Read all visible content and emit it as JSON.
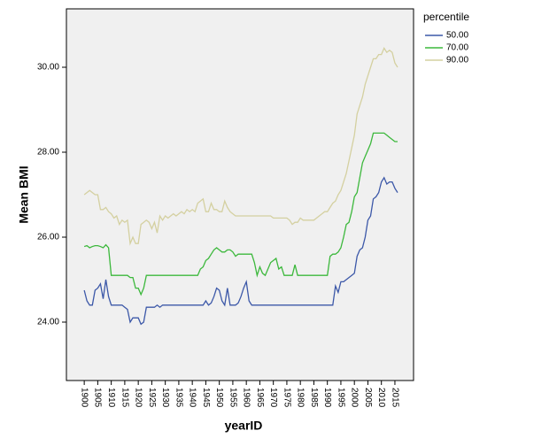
{
  "chart_data": {
    "type": "line",
    "x_label": "yearID",
    "y_label": "Mean BMI",
    "legend_title": "percentile",
    "legend_position": "right",
    "x": [
      1900,
      1901,
      1902,
      1903,
      1904,
      1905,
      1906,
      1907,
      1908,
      1909,
      1910,
      1911,
      1912,
      1913,
      1914,
      1915,
      1916,
      1917,
      1918,
      1919,
      1920,
      1921,
      1922,
      1923,
      1924,
      1925,
      1926,
      1927,
      1928,
      1929,
      1930,
      1931,
      1932,
      1933,
      1934,
      1935,
      1936,
      1937,
      1938,
      1939,
      1940,
      1941,
      1942,
      1943,
      1944,
      1945,
      1946,
      1947,
      1948,
      1949,
      1950,
      1951,
      1952,
      1953,
      1954,
      1955,
      1956,
      1957,
      1958,
      1959,
      1960,
      1961,
      1962,
      1963,
      1964,
      1965,
      1966,
      1967,
      1968,
      1969,
      1970,
      1971,
      1972,
      1973,
      1974,
      1975,
      1976,
      1977,
      1978,
      1979,
      1980,
      1981,
      1982,
      1983,
      1984,
      1985,
      1986,
      1987,
      1988,
      1989,
      1990,
      1991,
      1992,
      1993,
      1994,
      1995,
      1996,
      1997,
      1998,
      1999,
      2000,
      2001,
      2002,
      2003,
      2004,
      2005,
      2006,
      2007,
      2008,
      2009,
      2010,
      2011,
      2012,
      2013,
      2014,
      2015,
      2016
    ],
    "series": [
      {
        "name": "50.00",
        "color": "#3c58a8",
        "values": [
          24.75,
          24.5,
          24.4,
          24.4,
          24.75,
          24.8,
          24.9,
          24.55,
          25.0,
          24.6,
          24.4,
          24.4,
          24.4,
          24.4,
          24.4,
          24.35,
          24.3,
          24.0,
          24.1,
          24.1,
          24.1,
          23.95,
          24.0,
          24.35,
          24.35,
          24.35,
          24.35,
          24.4,
          24.35,
          24.4,
          24.4,
          24.4,
          24.4,
          24.4,
          24.4,
          24.4,
          24.4,
          24.4,
          24.4,
          24.4,
          24.4,
          24.4,
          24.4,
          24.4,
          24.4,
          24.5,
          24.4,
          24.45,
          24.6,
          24.8,
          24.75,
          24.5,
          24.4,
          24.8,
          24.4,
          24.4,
          24.4,
          24.45,
          24.6,
          24.8,
          24.95,
          24.5,
          24.4,
          24.4,
          24.4,
          24.4,
          24.4,
          24.4,
          24.4,
          24.4,
          24.4,
          24.4,
          24.4,
          24.4,
          24.4,
          24.4,
          24.4,
          24.4,
          24.4,
          24.4,
          24.4,
          24.4,
          24.4,
          24.4,
          24.4,
          24.4,
          24.4,
          24.4,
          24.4,
          24.4,
          24.4,
          24.4,
          24.4,
          24.85,
          24.7,
          24.95,
          24.95,
          25.0,
          25.05,
          25.1,
          25.15,
          25.55,
          25.7,
          25.75,
          26.0,
          26.4,
          26.5,
          26.9,
          26.95,
          27.05,
          27.3,
          27.4,
          27.25,
          27.3,
          27.3,
          27.15,
          27.05
        ]
      },
      {
        "name": "70.00",
        "color": "#3cb83c",
        "values": [
          25.78,
          25.8,
          25.75,
          25.78,
          25.8,
          25.8,
          25.78,
          25.75,
          25.82,
          25.75,
          25.1,
          25.1,
          25.1,
          25.1,
          25.1,
          25.1,
          25.1,
          25.05,
          25.05,
          24.8,
          24.8,
          24.65,
          24.8,
          25.1,
          25.1,
          25.1,
          25.1,
          25.1,
          25.1,
          25.1,
          25.1,
          25.1,
          25.1,
          25.1,
          25.1,
          25.1,
          25.1,
          25.1,
          25.1,
          25.1,
          25.1,
          25.1,
          25.1,
          25.25,
          25.3,
          25.45,
          25.5,
          25.6,
          25.7,
          25.75,
          25.7,
          25.65,
          25.65,
          25.7,
          25.7,
          25.65,
          25.55,
          25.6,
          25.6,
          25.6,
          25.6,
          25.6,
          25.6,
          25.4,
          25.1,
          25.3,
          25.15,
          25.1,
          25.25,
          25.4,
          25.45,
          25.5,
          25.25,
          25.3,
          25.1,
          25.1,
          25.1,
          25.1,
          25.35,
          25.1,
          25.1,
          25.1,
          25.1,
          25.1,
          25.1,
          25.1,
          25.1,
          25.1,
          25.1,
          25.1,
          25.1,
          25.55,
          25.6,
          25.6,
          25.65,
          25.75,
          26.0,
          26.3,
          26.35,
          26.6,
          26.95,
          27.05,
          27.4,
          27.75,
          27.9,
          28.05,
          28.2,
          28.45,
          28.45,
          28.45,
          28.45,
          28.45,
          28.4,
          28.35,
          28.3,
          28.25,
          28.25
        ]
      },
      {
        "name": "90.00",
        "color": "#d4d0a0",
        "values": [
          27.0,
          27.05,
          27.1,
          27.05,
          27.0,
          27.0,
          26.65,
          26.65,
          26.7,
          26.6,
          26.55,
          26.45,
          26.5,
          26.3,
          26.4,
          26.35,
          26.4,
          25.85,
          26.0,
          25.85,
          25.85,
          26.3,
          26.35,
          26.4,
          26.35,
          26.2,
          26.35,
          26.1,
          26.5,
          26.4,
          26.5,
          26.45,
          26.5,
          26.55,
          26.5,
          26.55,
          26.6,
          26.55,
          26.65,
          26.6,
          26.65,
          26.6,
          26.8,
          26.85,
          26.9,
          26.6,
          26.6,
          26.8,
          26.65,
          26.65,
          26.6,
          26.6,
          26.85,
          26.7,
          26.6,
          26.55,
          26.5,
          26.5,
          26.5,
          26.5,
          26.5,
          26.5,
          26.5,
          26.5,
          26.5,
          26.5,
          26.5,
          26.5,
          26.5,
          26.5,
          26.45,
          26.45,
          26.45,
          26.45,
          26.45,
          26.45,
          26.4,
          26.3,
          26.35,
          26.35,
          26.45,
          26.4,
          26.4,
          26.4,
          26.4,
          26.4,
          26.45,
          26.5,
          26.55,
          26.6,
          26.6,
          26.7,
          26.8,
          26.85,
          27.0,
          27.1,
          27.3,
          27.5,
          27.8,
          28.1,
          28.4,
          28.9,
          29.1,
          29.3,
          29.6,
          29.8,
          30.0,
          30.2,
          30.2,
          30.3,
          30.3,
          30.45,
          30.35,
          30.4,
          30.35,
          30.1,
          30.0
        ]
      }
    ],
    "xlim": [
      1893.4,
      2021.9
    ],
    "xticks": [
      1900,
      1905,
      1910,
      1915,
      1920,
      1925,
      1930,
      1935,
      1940,
      1945,
      1950,
      1955,
      1960,
      1965,
      1970,
      1975,
      1980,
      1985,
      1990,
      1995,
      2000,
      2005,
      2010,
      2015
    ],
    "ylim": [
      22.625,
      31.375
    ],
    "yticks": [
      {
        "value": 24,
        "label": "24.00"
      },
      {
        "value": 26,
        "label": "26.00"
      },
      {
        "value": 28,
        "label": "28.00"
      },
      {
        "value": 30,
        "label": "30.00"
      }
    ],
    "grid": false
  }
}
